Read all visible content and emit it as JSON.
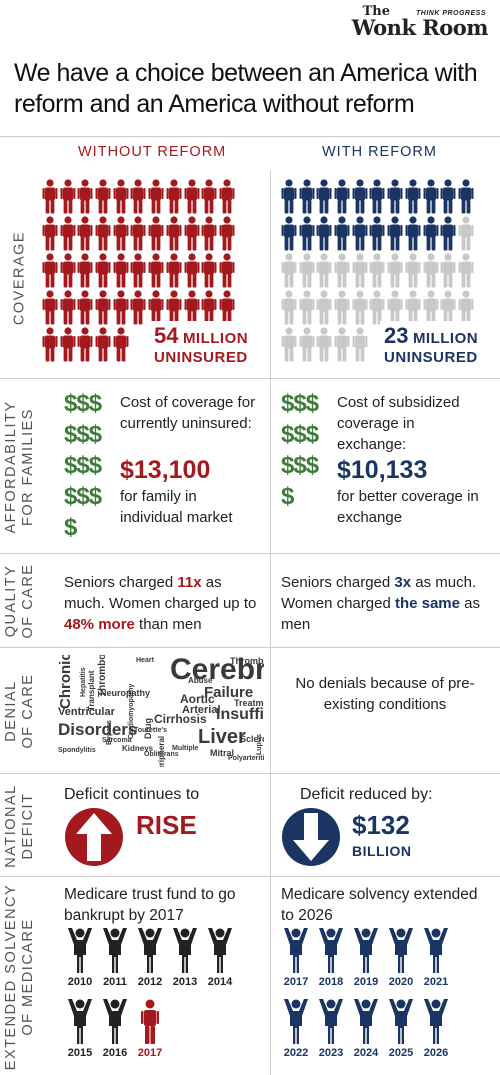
{
  "brand": {
    "the": "The",
    "name": "Wonk Room",
    "tagline": "THINK PROGRESS"
  },
  "headline": "We have a choice between an America with reform and an America without reform",
  "columns": {
    "without": "WITHOUT REFORM",
    "with": "WITH REFORM"
  },
  "rows": {
    "coverage": {
      "label": "COVERAGE",
      "without": {
        "number": "54",
        "unit": "MILLION",
        "sub": "UNINSURED",
        "uninsured_fraction": 1.0
      },
      "with": {
        "number": "23",
        "unit": "MILLION",
        "sub": "UNINSURED",
        "uninsured_fraction": 0.43
      }
    },
    "affordability": {
      "label_line1": "AFFORDABILITY",
      "label_line2": "FOR FAMILIES",
      "dollar_rows_without": [
        "$$$",
        "$$$",
        "$$$",
        "$$$",
        "$"
      ],
      "dollar_rows_with": [
        "$$$",
        "$$$",
        "$$$",
        "$"
      ],
      "without": {
        "desc": "Cost of coverage for currently uninsured:",
        "amount": "$13,100",
        "note": "for family in individual market"
      },
      "with": {
        "desc": "Cost of subsidized coverage in exchange:",
        "amount": "$10,133",
        "note": "for better coverage in exchange"
      }
    },
    "quality": {
      "label_line1": "QUALITY",
      "label_line2": "OF CARE",
      "without": {
        "p1": "Seniors charged ",
        "h1": "11x",
        "p2": " as much. Women charged up to ",
        "h2": "48% more",
        "p3": " than men"
      },
      "with": {
        "p1": "Seniors charged ",
        "h1": "3x",
        "p2": " as much. Women charged ",
        "h2": "the same",
        "p3": " as men"
      }
    },
    "denial": {
      "label_line1": "DENIAL",
      "label_line2": "OF CARE",
      "word_cloud": [
        "Chronic",
        "Hepatitis",
        "Heart",
        "Cerebral",
        "Thrombocytosis",
        "Thrombocytopenia",
        "Transplant",
        "Neuropathy",
        "Abuse",
        "Failure",
        "Aortic",
        "Arterial",
        "Cirrhosis",
        "Ventricular",
        "Treatment",
        "Insufficiency",
        "Disorders",
        "Drug",
        "Peripheral",
        "Liver",
        "Sclerosis",
        "Spondylitis",
        "Kidneys",
        "Mitral",
        "Sarcoma",
        "Lupus",
        "Multiple",
        "Obliterans",
        "Cardiomyopathy",
        "Bypass",
        "Tourette's",
        "Polyarteritis"
      ],
      "with": "No denials because of pre-existing conditions"
    },
    "deficit": {
      "label_line1": "NATIONAL",
      "label_line2": "DEFICIT",
      "without": {
        "text": "Deficit continues to",
        "word": "RISE"
      },
      "with": {
        "text": "Deficit reduced by:",
        "amount": "$132",
        "unit": "BILLION"
      }
    },
    "medicare": {
      "label_line1": "EXTENDED SOLVENCY",
      "label_line2": "OF MEDICARE",
      "without": {
        "text": "Medicare trust fund to go bankrupt by 2017",
        "years": [
          "2010",
          "2011",
          "2012",
          "2013",
          "2014",
          "2015",
          "2016",
          "2017"
        ],
        "highlight_year": "2017"
      },
      "with": {
        "text": "Medicare solvency extended to 2026",
        "years": [
          "2017",
          "2018",
          "2019",
          "2020",
          "2021",
          "2022",
          "2023",
          "2024",
          "2025",
          "2026"
        ]
      }
    }
  },
  "colors": {
    "red": "#a4191d",
    "blue": "#1a3463",
    "gray": "#c8c8c8",
    "green": "#3e7c3a",
    "figure": "#222222"
  }
}
